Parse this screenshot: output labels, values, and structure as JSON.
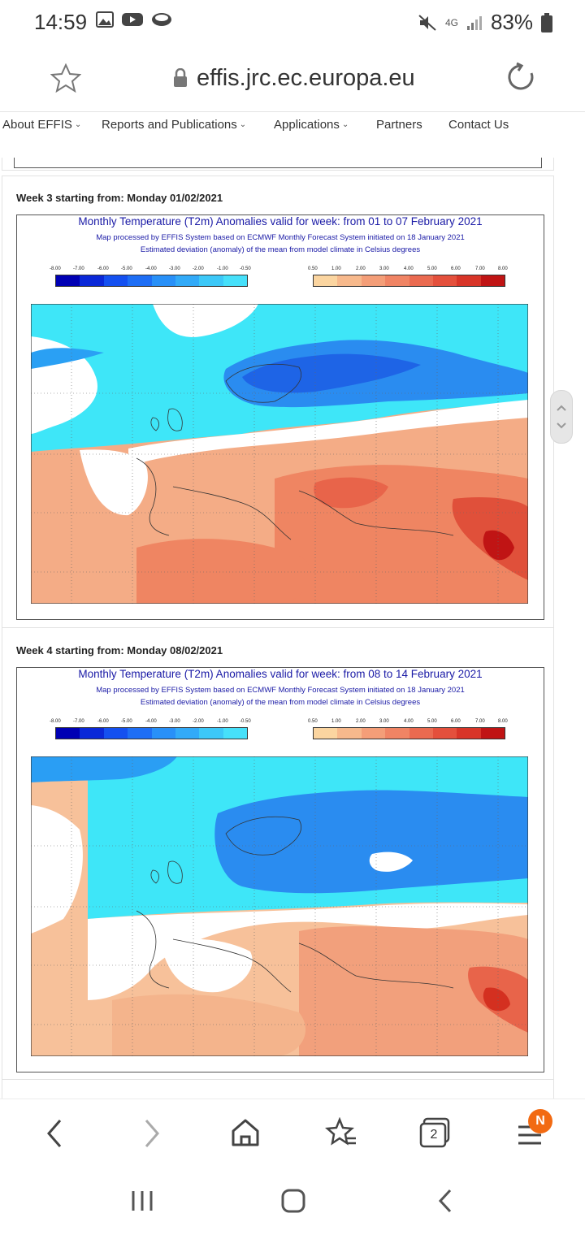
{
  "status_bar": {
    "time": "14:59",
    "network": "4G",
    "battery": "83%"
  },
  "browser": {
    "url": "effis.jrc.ec.europa.eu",
    "tab_count": "2",
    "notification_badge": "N"
  },
  "nav": {
    "items": [
      {
        "label": "About EFFIS"
      },
      {
        "label": "Reports and Publications"
      },
      {
        "label": "Applications"
      },
      {
        "label": "Partners"
      },
      {
        "label": "Contact Us"
      }
    ]
  },
  "legend": {
    "cold_labels": [
      "-8.00",
      "-7.00",
      "-6.00",
      "-5.00",
      "-4.00",
      "-3.00",
      "-2.00",
      "-1.00",
      "-0.50"
    ],
    "warm_labels": [
      "0.50",
      "1.00",
      "2.00",
      "3.00",
      "4.00",
      "5.00",
      "6.00",
      "7.00",
      "8.00"
    ],
    "cold_colors": [
      "#0000b4",
      "#0a28d8",
      "#1450f0",
      "#1e6ef5",
      "#2890f8",
      "#32aaf8",
      "#3cc8f8",
      "#46e0fa"
    ],
    "warm_colors": [
      "#fbd5a0",
      "#f7b98c",
      "#f49e78",
      "#f08464",
      "#ea6a50",
      "#e4503c",
      "#d83528",
      "#c01414"
    ]
  },
  "weeks": [
    {
      "heading": "Week 3 starting from: Monday 01/02/2021",
      "map_title": "Monthly Temperature (T2m) Anomalies valid for week: from 01 to 07 February 2021",
      "map_subtitle_1": "Map processed by EFFIS System based on ECMWF Monthly Forecast System initiated on 18 January 2021",
      "map_subtitle_2": "Estimated deviation (anomaly) of the mean from model climate in Celsius degrees"
    },
    {
      "heading": "Week 4 starting from: Monday 08/02/2021",
      "map_title": "Monthly Temperature (T2m) Anomalies valid for week: from 08 to 14 February 2021",
      "map_subtitle_1": "Map processed by EFFIS System based on ECMWF Monthly Forecast System initiated on 18 January 2021",
      "map_subtitle_2": "Estimated deviation (anomaly) of the mean from model climate in Celsius degrees"
    }
  ]
}
